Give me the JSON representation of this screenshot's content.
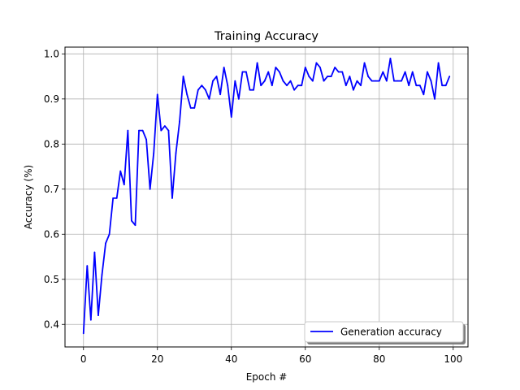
{
  "chart_data": {
    "type": "line",
    "title": "Training Accuracy",
    "xlabel": "Epoch #",
    "ylabel": "Accuracy (%)",
    "xlim": [
      -5,
      104
    ],
    "ylim": [
      0.35,
      1.015
    ],
    "xticks": [
      0,
      20,
      40,
      60,
      80,
      100
    ],
    "yticks": [
      0.4,
      0.5,
      0.6,
      0.7,
      0.8,
      0.9,
      1.0
    ],
    "xtick_labels": [
      "0",
      "20",
      "40",
      "60",
      "80",
      "100"
    ],
    "ytick_labels": [
      "0.4",
      "0.5",
      "0.6",
      "0.7",
      "0.8",
      "0.9",
      "1.0"
    ],
    "grid": true,
    "legend": {
      "position": "lower-right"
    },
    "series": [
      {
        "name": "Generation accuracy",
        "color": "#0000ff",
        "x": [
          0,
          1,
          2,
          3,
          4,
          5,
          6,
          7,
          8,
          9,
          10,
          11,
          12,
          13,
          14,
          15,
          16,
          17,
          18,
          19,
          20,
          21,
          22,
          23,
          24,
          25,
          26,
          27,
          28,
          29,
          30,
          31,
          32,
          33,
          34,
          35,
          36,
          37,
          38,
          39,
          40,
          41,
          42,
          43,
          44,
          45,
          46,
          47,
          48,
          49,
          50,
          51,
          52,
          53,
          54,
          55,
          56,
          57,
          58,
          59,
          60,
          61,
          62,
          63,
          64,
          65,
          66,
          67,
          68,
          69,
          70,
          71,
          72,
          73,
          74,
          75,
          76,
          77,
          78,
          79,
          80,
          81,
          82,
          83,
          84,
          85,
          86,
          87,
          88,
          89,
          90,
          91,
          92,
          93,
          94,
          95,
          96,
          97,
          98,
          99
        ],
        "values": [
          0.38,
          0.53,
          0.41,
          0.56,
          0.42,
          0.51,
          0.58,
          0.6,
          0.68,
          0.68,
          0.74,
          0.71,
          0.83,
          0.63,
          0.62,
          0.83,
          0.83,
          0.81,
          0.7,
          0.78,
          0.91,
          0.83,
          0.84,
          0.83,
          0.68,
          0.78,
          0.85,
          0.95,
          0.91,
          0.88,
          0.88,
          0.92,
          0.93,
          0.92,
          0.9,
          0.94,
          0.95,
          0.91,
          0.97,
          0.93,
          0.86,
          0.94,
          0.9,
          0.96,
          0.96,
          0.92,
          0.92,
          0.98,
          0.93,
          0.94,
          0.96,
          0.93,
          0.97,
          0.96,
          0.94,
          0.93,
          0.94,
          0.92,
          0.93,
          0.93,
          0.97,
          0.95,
          0.94,
          0.98,
          0.97,
          0.94,
          0.95,
          0.95,
          0.97,
          0.96,
          0.96,
          0.93,
          0.95,
          0.92,
          0.94,
          0.93,
          0.98,
          0.95,
          0.94,
          0.94,
          0.94,
          0.96,
          0.94,
          0.99,
          0.94,
          0.94,
          0.94,
          0.96,
          0.93,
          0.96,
          0.93,
          0.93,
          0.91,
          0.96,
          0.94,
          0.9,
          0.98,
          0.93,
          0.93,
          0.95
        ]
      }
    ]
  }
}
